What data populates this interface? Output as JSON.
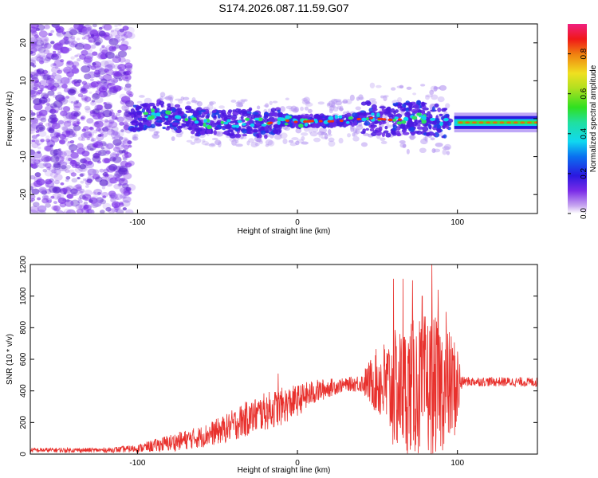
{
  "title": "S174.2026.087.11.59.G07",
  "chart_data": [
    {
      "type": "heatmap",
      "xlabel": "Height of straight line (km)",
      "ylabel": "Frequency (Hz)",
      "xlim": [
        -167,
        150
      ],
      "ylim": [
        -25,
        25
      ],
      "x_ticks": [
        -100,
        0,
        100
      ],
      "y_ticks": [
        -20,
        -10,
        0,
        10,
        20
      ],
      "colorbar": {
        "label": "Normalized spectral amplitude",
        "range": [
          0,
          0.95
        ],
        "ticks": [
          0.0,
          0.2,
          0.4,
          0.6,
          0.8
        ]
      },
      "ridge": [
        {
          "x": -100,
          "y": 0.0
        },
        {
          "x": -90,
          "y": 1.5
        },
        {
          "x": -75,
          "y": 0.0
        },
        {
          "x": -60,
          "y": -1.0
        },
        {
          "x": -45,
          "y": -1.5
        },
        {
          "x": -30,
          "y": -0.8
        },
        {
          "x": -20,
          "y": -1.5
        },
        {
          "x": -10,
          "y": -0.3
        },
        {
          "x": 0,
          "y": -0.9
        },
        {
          "x": 10,
          "y": -0.6
        },
        {
          "x": 20,
          "y": -0.7
        },
        {
          "x": 30,
          "y": -0.5
        },
        {
          "x": 45,
          "y": 0.2
        },
        {
          "x": 60,
          "y": -0.4
        },
        {
          "x": 75,
          "y": 0.3
        },
        {
          "x": 90,
          "y": -0.5
        },
        {
          "x": 97,
          "y": -1.3
        },
        {
          "x": 100,
          "y": -1.0
        },
        {
          "x": 125,
          "y": -1.0
        },
        {
          "x": 150,
          "y": -1.5
        }
      ],
      "noise_region_x": [
        -167,
        -104
      ],
      "tone_region_x": [
        98,
        150
      ],
      "tone_frequency": -1.0
    },
    {
      "type": "line",
      "xlabel": "Height of straight line (km)",
      "ylabel": "SNR (10 * v/v)",
      "xlim": [
        -167,
        150
      ],
      "ylim": [
        0,
        1200
      ],
      "x_ticks": [
        -100,
        0,
        100
      ],
      "y_ticks": [
        0,
        200,
        400,
        600,
        800,
        1000,
        1200
      ],
      "color": "#e8302c",
      "envelope": [
        {
          "x": -167,
          "mean": 25,
          "spread": 15
        },
        {
          "x": -120,
          "mean": 25,
          "spread": 15
        },
        {
          "x": -100,
          "mean": 35,
          "spread": 25
        },
        {
          "x": -80,
          "mean": 70,
          "spread": 55
        },
        {
          "x": -60,
          "mean": 110,
          "spread": 70
        },
        {
          "x": -45,
          "mean": 160,
          "spread": 90
        },
        {
          "x": -35,
          "mean": 210,
          "spread": 110
        },
        {
          "x": -20,
          "mean": 270,
          "spread": 120
        },
        {
          "x": -10,
          "mean": 300,
          "spread": 120
        },
        {
          "x": 0,
          "mean": 340,
          "spread": 100
        },
        {
          "x": 10,
          "mean": 390,
          "spread": 80
        },
        {
          "x": 20,
          "mean": 420,
          "spread": 60
        },
        {
          "x": 30,
          "mean": 440,
          "spread": 40
        },
        {
          "x": 40,
          "mean": 450,
          "spread": 60
        },
        {
          "x": 50,
          "mean": 460,
          "spread": 220
        },
        {
          "x": 60,
          "mean": 400,
          "spread": 380
        },
        {
          "x": 70,
          "mean": 420,
          "spread": 420
        },
        {
          "x": 80,
          "mean": 430,
          "spread": 460
        },
        {
          "x": 90,
          "mean": 430,
          "spread": 420
        },
        {
          "x": 100,
          "mean": 420,
          "spread": 300
        },
        {
          "x": 103,
          "mean": 460,
          "spread": 30
        },
        {
          "x": 150,
          "mean": 455,
          "spread": 30
        }
      ],
      "peaks": [
        {
          "x": -30,
          "y": 300
        },
        {
          "x": -12,
          "y": 510
        },
        {
          "x": 60,
          "y": 1110
        },
        {
          "x": 66,
          "y": 1110
        },
        {
          "x": 72,
          "y": 1100
        },
        {
          "x": 78,
          "y": 1000
        },
        {
          "x": 84,
          "y": 1200
        },
        {
          "x": 88,
          "y": 1040
        },
        {
          "x": 93,
          "y": 900
        }
      ]
    }
  ]
}
